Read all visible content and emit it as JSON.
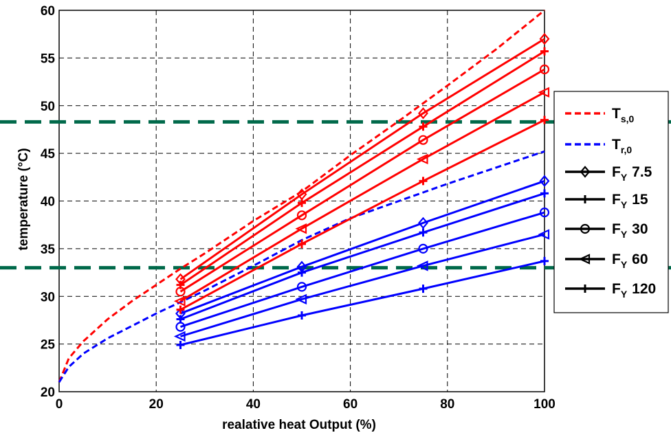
{
  "chart_data": {
    "type": "line",
    "xlabel": "realative heat Output (%)",
    "ylabel": "temperature (°C)",
    "xlim": [
      0,
      100
    ],
    "ylim": [
      20,
      60
    ],
    "xticks": [
      "0",
      "20",
      "40",
      "60",
      "80",
      "100"
    ],
    "yticks": [
      "20",
      "25",
      "30",
      "35",
      "40",
      "45",
      "50",
      "55",
      "60"
    ],
    "grid": true,
    "legend_position": "right",
    "reference_lines": [
      {
        "y": 48.3,
        "color": "#00694a",
        "style": "dashed"
      },
      {
        "y": 33.0,
        "color": "#00694a",
        "style": "dashed"
      }
    ],
    "curves": [
      {
        "legend": "T",
        "legend_sub": "s,0",
        "color": "#ff0000",
        "style": "dashed",
        "x": [
          0,
          2,
          5,
          10,
          15,
          20,
          25,
          30,
          40,
          50,
          60,
          70,
          80,
          90,
          100
        ],
        "y": [
          21.0,
          23.5,
          25.3,
          27.6,
          29.5,
          31.2,
          32.9,
          34.5,
          37.9,
          41.0,
          44.8,
          48.4,
          52.1,
          55.9,
          60.0
        ]
      },
      {
        "legend": "T",
        "legend_sub": "r,0",
        "color": "#0000ff",
        "style": "dashed",
        "x": [
          0,
          2,
          5,
          10,
          15,
          20,
          25,
          30,
          40,
          50,
          60,
          70,
          80,
          90,
          100
        ],
        "y": [
          21.0,
          22.6,
          24.0,
          25.6,
          26.9,
          28.2,
          29.4,
          30.6,
          33.2,
          35.9,
          38.2,
          40.0,
          41.8,
          43.5,
          45.2
        ]
      }
    ],
    "series": [
      {
        "legend": "F",
        "legend_sub": "Y",
        "legend_value": "7.5",
        "marker": "diamond",
        "x": [
          25,
          50,
          75,
          100
        ],
        "supply": [
          31.8,
          40.7,
          49.2,
          57.0
        ],
        "return": [
          28.2,
          33.1,
          37.7,
          42.1
        ]
      },
      {
        "legend": "F",
        "legend_sub": "Y",
        "legend_value": "15",
        "marker": "plus",
        "x": [
          25,
          50,
          75,
          100
        ],
        "supply": [
          31.2,
          39.8,
          47.8,
          55.7
        ],
        "return": [
          27.6,
          32.5,
          36.7,
          40.8
        ]
      },
      {
        "legend": "F",
        "legend_sub": "Y",
        "legend_value": "30",
        "marker": "circle",
        "x": [
          25,
          50,
          75,
          100
        ],
        "supply": [
          30.5,
          38.5,
          46.4,
          53.8
        ],
        "return": [
          26.8,
          31.0,
          35.0,
          38.8
        ]
      },
      {
        "legend": "F",
        "legend_sub": "Y",
        "legend_value": "60",
        "marker": "triangle-left",
        "x": [
          25,
          50,
          75,
          100
        ],
        "supply": [
          29.5,
          37.1,
          44.4,
          51.4
        ],
        "return": [
          25.8,
          29.7,
          33.2,
          36.5
        ]
      },
      {
        "legend": "F",
        "legend_sub": "Y",
        "legend_value": "120",
        "marker": "plus",
        "x": [
          25,
          50,
          75,
          100
        ],
        "supply": [
          28.6,
          35.5,
          42.1,
          48.5
        ],
        "return": [
          24.9,
          28.0,
          30.8,
          33.7
        ]
      }
    ],
    "colors": {
      "supply": "#ff0000",
      "return": "#0000ff",
      "reference": "#00694a",
      "grid": "#000000"
    }
  }
}
